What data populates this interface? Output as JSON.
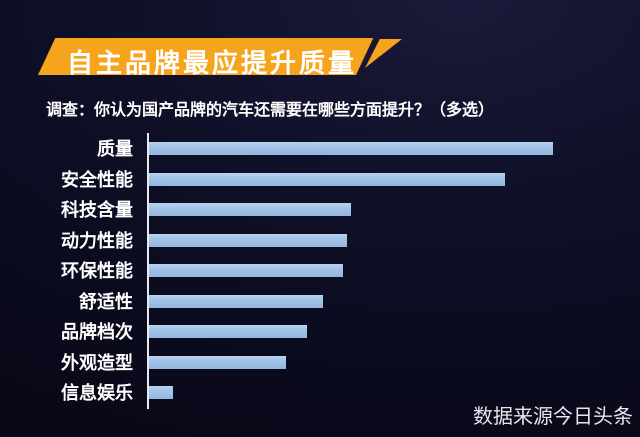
{
  "banner": {
    "title": "自主品牌最应提升质量"
  },
  "subtitle": "调查：你认为国产品牌的汽车还需要在哪些方面提升？（多选）",
  "source": "数据来源今日头条",
  "colors": {
    "background": "#0e0e26",
    "banner": "#f7a41d",
    "bar": "#a3c4e8",
    "axis": "#e8e8f0",
    "text": "#ffffff"
  },
  "chart_data": {
    "type": "bar",
    "orientation": "horizontal",
    "title": "自主品牌最应提升质量",
    "subtitle": "调查：你认为国产品牌的汽车还需要在哪些方面提升？（多选）",
    "categories": [
      "质量",
      "安全性能",
      "科技含量",
      "动力性能",
      "环保性能",
      "舒适性",
      "品牌档次",
      "外观造型",
      "信息娱乐"
    ],
    "values": [
      100,
      88,
      50,
      49,
      48,
      43,
      39,
      34,
      6
    ],
    "units": "relative bar length (no numeric axis or data labels shown)",
    "xlabel": "",
    "ylabel": "",
    "xlim": [
      0,
      100
    ],
    "grid": false,
    "legend": false,
    "bar_color": "#a3c4e8",
    "source": "数据来源今日头条"
  }
}
